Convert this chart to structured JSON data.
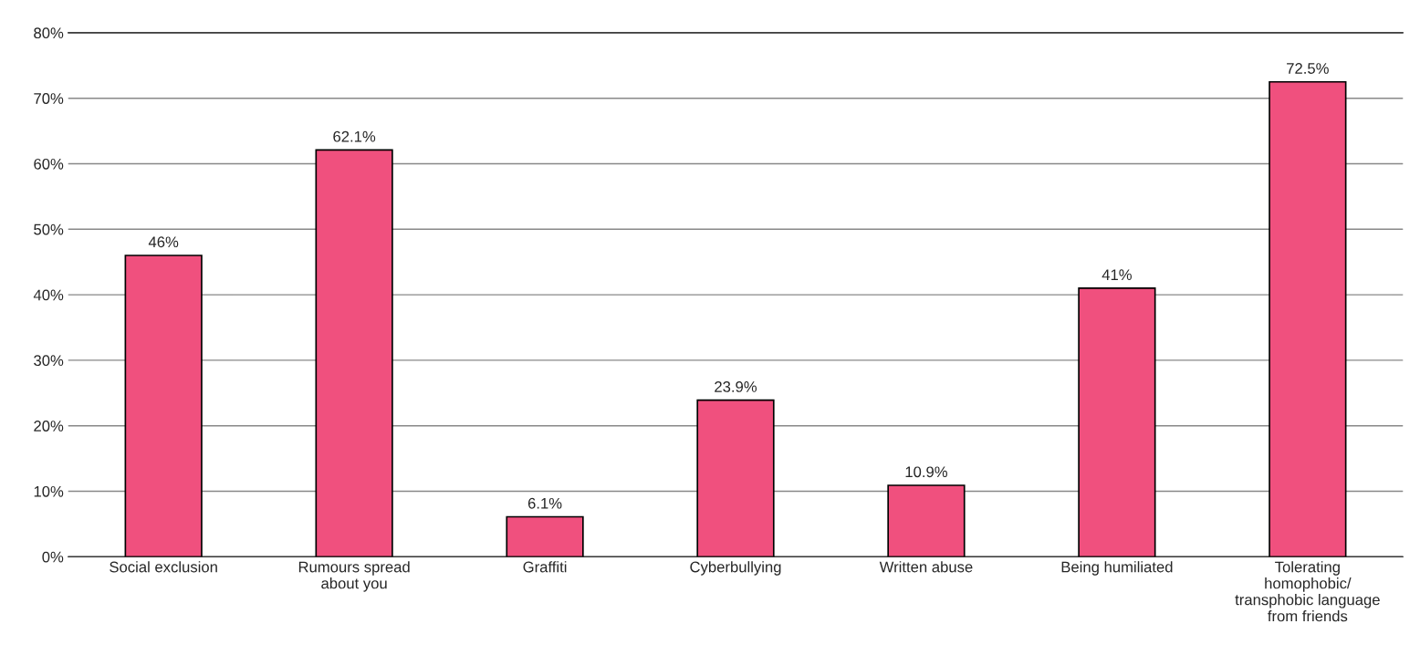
{
  "chart_data": {
    "type": "bar",
    "categories": [
      "Social exclusion",
      "Rumours spread\nabout you",
      "Graffiti",
      "Cyberbullying",
      "Written abuse",
      "Being humiliated",
      "Tolerating\nhomophobic/\ntransphobic language\nfrom friends"
    ],
    "values": [
      46,
      62.1,
      6.1,
      23.9,
      10.9,
      41,
      72.5
    ],
    "value_labels": [
      "46%",
      "62.1%",
      "6.1%",
      "23.9%",
      "10.9%",
      "41%",
      "72.5%"
    ],
    "color": "#f0507e",
    "ylim": [
      0,
      80
    ],
    "yticks": [
      {
        "value": 0,
        "label": "0%"
      },
      {
        "value": 10,
        "label": "10%"
      },
      {
        "value": 20,
        "label": "20%"
      },
      {
        "value": 30,
        "label": "30%"
      },
      {
        "value": 40,
        "label": "40%"
      },
      {
        "value": 50,
        "label": "50%"
      },
      {
        "value": 60,
        "label": "60%"
      },
      {
        "value": 70,
        "label": "70%"
      },
      {
        "value": 80,
        "label": "80%"
      }
    ],
    "grid": "y",
    "legend": false
  }
}
